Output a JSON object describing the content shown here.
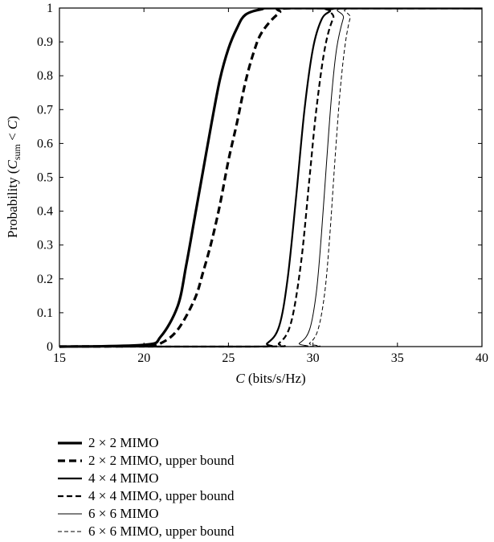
{
  "chart_data": {
    "type": "line",
    "xlabel": "C (bits/s/Hz)",
    "ylabel": "Probability (C_sum < C)",
    "xlim": [
      15,
      40
    ],
    "ylim": [
      0,
      1
    ],
    "x_ticks": [
      "15",
      "20",
      "25",
      "30",
      "35",
      "40"
    ],
    "y_ticks": [
      "0",
      "0.1",
      "0.2",
      "0.3",
      "0.4",
      "0.5",
      "0.6",
      "0.7",
      "0.8",
      "0.9",
      "1"
    ],
    "grid": false,
    "legend_position": "below",
    "series": [
      {
        "name": "2 × 2 MIMO",
        "style": "solid",
        "weight": "thick",
        "x": [
          15,
          20,
          21,
          22,
          22.5,
          23,
          23.5,
          24,
          24.5,
          25,
          25.5,
          26,
          27,
          28,
          40
        ],
        "y": [
          0,
          0.005,
          0.03,
          0.12,
          0.24,
          0.38,
          0.52,
          0.66,
          0.79,
          0.88,
          0.94,
          0.98,
          0.997,
          1,
          1
        ]
      },
      {
        "name": "2 × 2 MIMO, upper bound",
        "style": "dashed",
        "weight": "thick",
        "x": [
          15,
          20,
          21,
          22,
          23,
          23.5,
          24,
          24.5,
          25,
          25.5,
          26,
          26.5,
          27,
          28,
          29,
          40
        ],
        "y": [
          0,
          0.002,
          0.01,
          0.05,
          0.14,
          0.22,
          0.31,
          0.42,
          0.55,
          0.66,
          0.78,
          0.87,
          0.93,
          0.985,
          1,
          1
        ]
      },
      {
        "name": "4 × 4 MIMO",
        "style": "solid",
        "weight": "medium",
        "x": [
          15,
          26.5,
          27.3,
          28,
          28.5,
          29,
          29.5,
          30,
          30.5,
          31,
          31.5,
          40
        ],
        "y": [
          0,
          0,
          0.01,
          0.06,
          0.2,
          0.44,
          0.7,
          0.88,
          0.965,
          0.99,
          1,
          1
        ]
      },
      {
        "name": "4 × 4 MIMO, upper bound",
        "style": "dashed",
        "weight": "medium",
        "x": [
          15,
          27.2,
          28,
          28.7,
          29.3,
          29.8,
          30.2,
          30.7,
          31.2,
          31.7,
          40
        ],
        "y": [
          0,
          0,
          0.01,
          0.07,
          0.25,
          0.5,
          0.7,
          0.88,
          0.97,
          1,
          1
        ]
      },
      {
        "name": "6 × 6 MIMO",
        "style": "solid",
        "weight": "thin",
        "x": [
          15,
          28.5,
          29.2,
          29.8,
          30.2,
          30.5,
          30.8,
          31.1,
          31.4,
          31.8,
          32.1,
          40
        ],
        "y": [
          0,
          0,
          0.01,
          0.05,
          0.16,
          0.33,
          0.54,
          0.74,
          0.88,
          0.97,
          1,
          1
        ]
      },
      {
        "name": "6 × 6 MIMO, upper bound",
        "style": "dashed",
        "weight": "thin",
        "x": [
          15,
          29.2,
          29.8,
          30.3,
          30.7,
          31,
          31.3,
          31.6,
          31.9,
          32.2,
          32.5,
          40
        ],
        "y": [
          0,
          0,
          0.01,
          0.05,
          0.16,
          0.33,
          0.55,
          0.75,
          0.89,
          0.97,
          1,
          1
        ]
      }
    ]
  }
}
